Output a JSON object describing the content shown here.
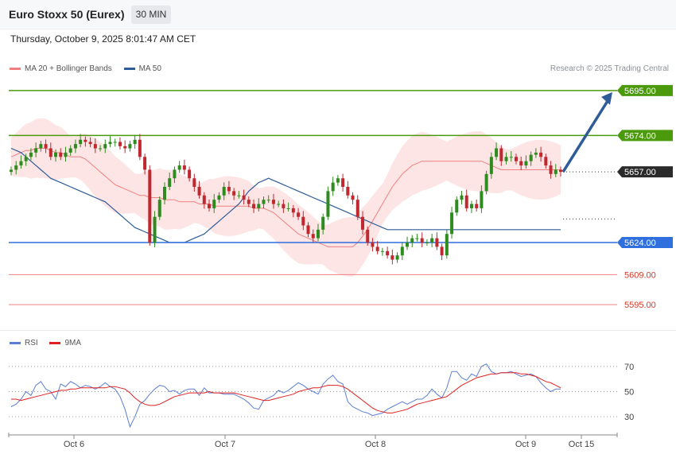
{
  "header": {
    "title": "Euro Stoxx 50 (Eurex)",
    "timeframe": "30 MIN",
    "datetime": "Thursday, October 9, 2025 8:01:47 AM CET",
    "credit": "Research © 2025 Trading Central"
  },
  "legend": {
    "items": [
      {
        "label": "MA 20 + Bollinger Bands",
        "color": "#f08080"
      },
      {
        "label": "MA 50",
        "color": "#2e5c99"
      }
    ]
  },
  "rsi_legend": {
    "items": [
      {
        "label": "RSI",
        "color": "#5b7fd6"
      },
      {
        "label": "9MA",
        "color": "#e02020"
      }
    ]
  },
  "colors": {
    "up": "#2e8b1e",
    "down": "#c0282f",
    "band": "#fde2e2",
    "ma20": "#f08080",
    "ma50": "#2e5c99",
    "resistance": "#4a9a0c",
    "support": "#2f6fde",
    "target": "#f08080",
    "arrow": "#2e5c99",
    "rsi": "#5b7fd6",
    "rsi_ma": "#e02020"
  },
  "chart_data": [
    {
      "type": "candlestick",
      "title": "Euro Stoxx 50 (Eurex) 30 MIN",
      "ylim": [
        5585,
        5702
      ],
      "x_tick_labels": [
        "Oct 6",
        "Oct 7",
        "Oct 8",
        "Oct 9",
        "Oct 15"
      ],
      "last_price": 5657.0,
      "levels": [
        {
          "value": 5695.0,
          "label": "5695.00",
          "kind": "resistance"
        },
        {
          "value": 5674.0,
          "label": "5674.00",
          "kind": "resistance"
        },
        {
          "value": 5657.0,
          "label": "5657.00",
          "kind": "current"
        },
        {
          "value": 5624.0,
          "label": "5624.00",
          "kind": "support"
        },
        {
          "value": 5609.0,
          "label": "5609.00",
          "kind": "target"
        },
        {
          "value": 5595.0,
          "label": "5595.00",
          "kind": "target"
        }
      ],
      "projection": {
        "from": 5657,
        "to": 5695
      },
      "series": [
        {
          "name": "Euro Stoxx 50",
          "close": [
            5658,
            5660,
            5662,
            5664,
            5666,
            5668,
            5670,
            5668,
            5664,
            5666,
            5664,
            5666,
            5668,
            5670,
            5672,
            5671,
            5670,
            5668,
            5668,
            5670,
            5671,
            5671,
            5669,
            5668,
            5670,
            5672,
            5664,
            5658,
            5624,
            5636,
            5644,
            5650,
            5654,
            5658,
            5660,
            5658,
            5654,
            5650,
            5646,
            5642,
            5640,
            5644,
            5646,
            5650,
            5648,
            5646,
            5646,
            5644,
            5642,
            5640,
            5642,
            5644,
            5644,
            5642,
            5642,
            5640,
            5640,
            5638,
            5636,
            5632,
            5628,
            5626,
            5630,
            5636,
            5648,
            5652,
            5654,
            5650,
            5646,
            5644,
            5636,
            5630,
            5624,
            5622,
            5620,
            5620,
            5618,
            5616,
            5618,
            5622,
            5624,
            5626,
            5626,
            5624,
            5624,
            5626,
            5622,
            5618,
            5628,
            5638,
            5644,
            5646,
            5640,
            5642,
            5640,
            5648,
            5656,
            5664,
            5668,
            5662,
            5664,
            5664,
            5662,
            5660,
            5662,
            5665,
            5666,
            5664,
            5660,
            5656,
            5658,
            5657
          ]
        },
        {
          "name": "MA 20",
          "values": [
            5664,
            5665,
            5666,
            5667,
            5667,
            5668,
            5668,
            5668,
            5667,
            5666,
            5666,
            5665,
            5664,
            5664,
            5664,
            5663,
            5661,
            5659,
            5657,
            5655,
            5653,
            5651,
            5650,
            5649,
            5648,
            5647,
            5646,
            5646,
            5645,
            5645,
            5645,
            5644,
            5644,
            5644,
            5643,
            5643,
            5643,
            5643,
            5642,
            5642,
            5642,
            5641,
            5641,
            5641,
            5641,
            5641,
            5641,
            5641,
            5641,
            5640,
            5640,
            5640,
            5639,
            5638,
            5636,
            5634,
            5632,
            5630,
            5628,
            5627,
            5626,
            5625,
            5624,
            5623,
            5622,
            5622,
            5622,
            5622,
            5622,
            5622,
            5624,
            5627,
            5630,
            5634,
            5638,
            5642,
            5646,
            5650,
            5653,
            5656,
            5658,
            5660,
            5661,
            5662,
            5662,
            5662,
            5662,
            5662,
            5662,
            5662,
            5662,
            5662,
            5662,
            5662,
            5662,
            5662,
            5661,
            5660,
            5659,
            5658,
            5658,
            5658,
            5658,
            5658,
            5658,
            5658,
            5658,
            5658,
            5658,
            5658,
            5658,
            5658
          ]
        },
        {
          "name": "MA 50",
          "values": [
            5668,
            5667,
            5666,
            5664,
            5662,
            5660,
            5658,
            5656,
            5654,
            5653,
            5652,
            5651,
            5650,
            5649,
            5648,
            5647,
            5646,
            5645,
            5644,
            5643,
            5641,
            5639,
            5637,
            5635,
            5633,
            5631,
            5630,
            5629,
            5628,
            5627,
            5626,
            5625,
            5624,
            5624,
            5624,
            5624,
            5625,
            5626,
            5627,
            5628,
            5630,
            5632,
            5634,
            5636,
            5638,
            5640,
            5642,
            5645,
            5648,
            5650,
            5652,
            5653,
            5654,
            5653,
            5652,
            5651,
            5650,
            5649,
            5648,
            5647,
            5646,
            5645,
            5644,
            5643,
            5642,
            5641,
            5640,
            5639,
            5638,
            5637,
            5636,
            5635,
            5634,
            5633,
            5632,
            5631,
            5630,
            5630,
            5630,
            5630,
            5630,
            5630,
            5630,
            5630,
            5630,
            5630,
            5630,
            5630,
            5630,
            5630,
            5630,
            5630,
            5630,
            5630,
            5630,
            5630,
            5630,
            5630,
            5630,
            5630,
            5630,
            5630,
            5630,
            5630,
            5630,
            5630,
            5630,
            5630,
            5630,
            5630,
            5630,
            5630
          ]
        }
      ]
    },
    {
      "type": "line",
      "title": "RSI",
      "ylim": [
        20,
        80
      ],
      "y_ticks": [
        30,
        50,
        70
      ],
      "series": [
        {
          "name": "RSI",
          "values": [
            38,
            40,
            44,
            50,
            47,
            55,
            58,
            52,
            50,
            44,
            56,
            54,
            58,
            56,
            53,
            55,
            54,
            52,
            54,
            57,
            54,
            52,
            46,
            36,
            22,
            30,
            40,
            43,
            48,
            52,
            55,
            54,
            50,
            51,
            48,
            51,
            52,
            52,
            47,
            53,
            49,
            49,
            49,
            48,
            48,
            48,
            46,
            44,
            41,
            37,
            36,
            43,
            45,
            47,
            51,
            49,
            51,
            54,
            57,
            55,
            52,
            50,
            48,
            56,
            60,
            63,
            58,
            56,
            42,
            38,
            36,
            34,
            33,
            31,
            32,
            33,
            36,
            38,
            40,
            42,
            40,
            42,
            44,
            44,
            47,
            52,
            48,
            45,
            53,
            66,
            66,
            61,
            59,
            64,
            62,
            70,
            72,
            66,
            64,
            65,
            65,
            66,
            64,
            62,
            63,
            64,
            62,
            57,
            53,
            50,
            52,
            52
          ]
        },
        {
          "name": "9MA",
          "values": [
            44,
            44,
            43,
            44,
            45,
            46,
            47,
            48,
            49,
            50,
            51,
            51,
            52,
            52,
            53,
            53,
            53,
            53,
            53,
            53,
            54,
            54,
            53,
            52,
            49,
            45,
            42,
            40,
            39,
            39,
            40,
            42,
            44,
            46,
            47,
            48,
            49,
            49,
            49,
            49,
            50,
            49,
            49,
            49,
            49,
            49,
            48,
            47,
            46,
            45,
            44,
            43,
            43,
            44,
            45,
            46,
            47,
            48,
            50,
            51,
            52,
            53,
            53,
            54,
            55,
            55,
            55,
            54,
            52,
            49,
            46,
            43,
            40,
            37,
            35,
            34,
            33,
            33,
            34,
            35,
            36,
            38,
            40,
            41,
            42,
            43,
            44,
            45,
            46,
            49,
            52,
            55,
            57,
            59,
            61,
            62,
            63,
            64,
            64,
            65,
            65,
            65,
            65,
            64,
            64,
            63,
            62,
            60,
            58,
            57,
            55,
            53
          ]
        }
      ]
    }
  ]
}
